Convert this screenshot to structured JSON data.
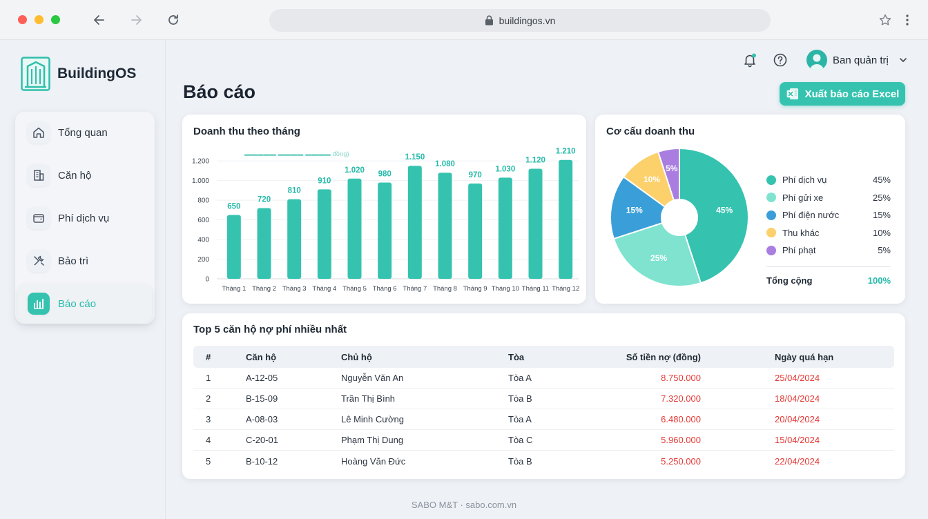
{
  "browser": {
    "url": "buildingos.vn"
  },
  "app": {
    "name": "BuildingOS"
  },
  "sidebar": {
    "items": [
      {
        "label": "Tổng quan",
        "icon": "home-icon"
      },
      {
        "label": "Căn hộ",
        "icon": "building-icon"
      },
      {
        "label": "Phí dịch vụ",
        "icon": "wallet-icon"
      },
      {
        "label": "Bảo trì",
        "icon": "tools-icon"
      },
      {
        "label": "Báo cáo",
        "icon": "chart-icon",
        "active": true
      }
    ]
  },
  "header": {
    "user_name": "Ban quản trị"
  },
  "page": {
    "title": "Báo cáo",
    "export_label": "Xuất báo cáo Excel"
  },
  "colors": {
    "accent": "#35c3b0",
    "danger": "#e53935"
  },
  "bar_chart": {
    "title": "Doanh thu theo tháng",
    "subtitle": "▬▬▬▬▬ ▬▬▬▬ ▬▬▬▬ đồng)"
  },
  "pie_chart": {
    "title": "Cơ cấu doanh thu",
    "total_label": "Tổng cộng",
    "total_value": "100%"
  },
  "chart_data": [
    {
      "type": "bar",
      "title": "Doanh thu theo tháng",
      "categories": [
        "Tháng 1",
        "Tháng 2",
        "Tháng 3",
        "Tháng 4",
        "Tháng 5",
        "Tháng 6",
        "Tháng 7",
        "Tháng 8",
        "Tháng 9",
        "Tháng 10",
        "Tháng 11",
        "Tháng 12"
      ],
      "values": [
        650,
        720,
        810,
        910,
        1020,
        980,
        1150,
        1080,
        970,
        1030,
        1120,
        1210
      ],
      "value_labels": [
        "650",
        "720",
        "810",
        "910",
        "1.020",
        "980",
        "1.150",
        "1.080",
        "970",
        "1.030",
        "1.120",
        "1.210"
      ],
      "yticks": [
        0,
        200,
        400,
        600,
        800,
        1000,
        1200
      ],
      "ytick_labels": [
        "0",
        "200",
        "400",
        "600",
        "800",
        "1.000",
        "1.200"
      ],
      "ylim": [
        0,
        1250
      ],
      "color": "#35c3b0",
      "grid": true
    },
    {
      "type": "pie",
      "title": "Cơ cấu doanh thu",
      "slices": [
        {
          "name": "Phí dịch vụ",
          "value": 45,
          "label": "45%",
          "color": "#35c3b0"
        },
        {
          "name": "Phí gửi xe",
          "value": 25,
          "label": "25%",
          "color": "#7fe3d0"
        },
        {
          "name": "Phí điện nước",
          "value": 15,
          "label": "15%",
          "color": "#3a9fd8"
        },
        {
          "name": "Thu khác",
          "value": 10,
          "label": "10%",
          "color": "#fcd06a"
        },
        {
          "name": "Phí phạt",
          "value": 5,
          "label": "5%",
          "color": "#a97ee0"
        }
      ],
      "legend": "right"
    }
  ],
  "debt_table": {
    "title": "Top 5 căn hộ nợ phí nhiều nhất",
    "columns": [
      "#",
      "Căn hộ",
      "Chủ hộ",
      "Tòa",
      "Số tiền nợ (đồng)",
      "Ngày quá hạn"
    ],
    "rows": [
      [
        "1",
        "A-12-05",
        "Nguyễn Văn An",
        "Tòa A",
        "8.750.000",
        "25/04/2024"
      ],
      [
        "2",
        "B-15-09",
        "Trần Thị Bình",
        "Tòa B",
        "7.320.000",
        "18/04/2024"
      ],
      [
        "3",
        "A-08-03",
        "Lê Minh Cường",
        "Tòa A",
        "6.480.000",
        "20/04/2024"
      ],
      [
        "4",
        "C-20-01",
        "Phạm Thị Dung",
        "Tòa C",
        "5.960.000",
        "15/04/2024"
      ],
      [
        "5",
        "B-10-12",
        "Hoàng Văn Đức",
        "Tòa B",
        "5.250.000",
        "22/04/2024"
      ]
    ]
  },
  "footer": {
    "text": "SABO M&T · sabo.com.vn"
  }
}
